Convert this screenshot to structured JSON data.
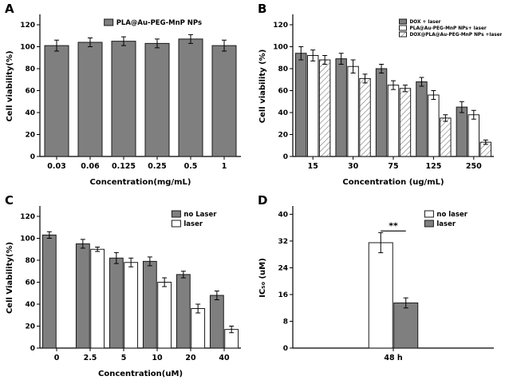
{
  "figure": {
    "panels": [
      {
        "letter": "A"
      },
      {
        "letter": "B"
      },
      {
        "letter": "C"
      },
      {
        "letter": "D"
      }
    ]
  },
  "colors": {
    "bar_solid": "#7f7f7f",
    "bar_open": "#ffffff",
    "bar_stroke": "#1a1a1a",
    "hatch_line": "#777777",
    "axis": "#000000"
  },
  "chart_data": [
    {
      "id": "A",
      "type": "bar",
      "ylabel": "Cell viability(%)",
      "xlabel": "Concentration(mg/mL)",
      "categories": [
        "0.03",
        "0.06",
        "0.125",
        "0.25",
        "0.5",
        "1"
      ],
      "series": [
        {
          "name": "PLA@Au-PEG-MnP NPs",
          "style": "solid",
          "values": [
            101,
            104,
            105,
            103,
            107,
            101
          ],
          "errors": [
            5,
            4,
            4,
            4,
            4,
            5
          ]
        }
      ],
      "ylim": [
        0,
        128
      ],
      "yticks": [
        0,
        20,
        40,
        60,
        80,
        100,
        120
      ],
      "grid": false,
      "legend_pos": "top-center"
    },
    {
      "id": "B",
      "type": "bar",
      "ylabel": "Cell viability (%)",
      "xlabel": "Concentration (ug/mL)",
      "categories": [
        "15",
        "30",
        "75",
        "125",
        "250"
      ],
      "series": [
        {
          "name": "DOX + laser",
          "style": "solid",
          "values": [
            94,
            89,
            80,
            68,
            45
          ],
          "errors": [
            6,
            5,
            4,
            4,
            5
          ]
        },
        {
          "name": "PLA@Au-PEG-MnP NPs+ laser",
          "style": "open",
          "values": [
            92,
            82,
            65,
            56,
            38
          ],
          "errors": [
            5,
            6,
            4,
            4,
            4
          ]
        },
        {
          "name": "DOX@PLA@Au-PEG-MnP NPs +laser",
          "style": "hatch",
          "values": [
            88,
            71,
            62,
            35,
            13
          ],
          "errors": [
            4,
            4,
            3,
            3,
            2
          ]
        }
      ],
      "ylim": [
        0,
        128
      ],
      "yticks": [
        0,
        20,
        40,
        60,
        80,
        100,
        120
      ],
      "grid": false,
      "legend_pos": "top-right",
      "legend_small": true
    },
    {
      "id": "C",
      "type": "bar",
      "ylabel": "Cell Viability(%)",
      "xlabel": "Concentration(uM)",
      "categories": [
        "0",
        "2.5",
        "5",
        "10",
        "20",
        "40"
      ],
      "series": [
        {
          "name": "no Laser",
          "style": "solid",
          "values": [
            103,
            95,
            82,
            79,
            67,
            48
          ],
          "errors": [
            3,
            4,
            5,
            4,
            3,
            4
          ]
        },
        {
          "name": "laser",
          "style": "open",
          "values": [
            null,
            90,
            78,
            60,
            36,
            17
          ],
          "errors": [
            null,
            2,
            4,
            4,
            4,
            3
          ]
        }
      ],
      "ylim": [
        0,
        128
      ],
      "yticks": [
        0,
        20,
        40,
        60,
        80,
        100,
        120
      ],
      "grid": false,
      "legend_pos": "top-right"
    },
    {
      "id": "D",
      "type": "bar",
      "ylabel": "IC₅₀ (uM)",
      "xlabel": "",
      "categories": [
        "48 h"
      ],
      "series": [
        {
          "name": "no laser",
          "style": "open",
          "values": [
            31.5
          ],
          "errors": [
            3
          ]
        },
        {
          "name": "laser",
          "style": "solid",
          "values": [
            13.5
          ],
          "errors": [
            1.5
          ]
        }
      ],
      "ylim": [
        0,
        42
      ],
      "yticks": [
        0,
        8,
        16,
        24,
        32,
        40
      ],
      "grid": false,
      "legend_pos": "top-right",
      "significance": {
        "text": "**",
        "y": 35
      }
    }
  ]
}
